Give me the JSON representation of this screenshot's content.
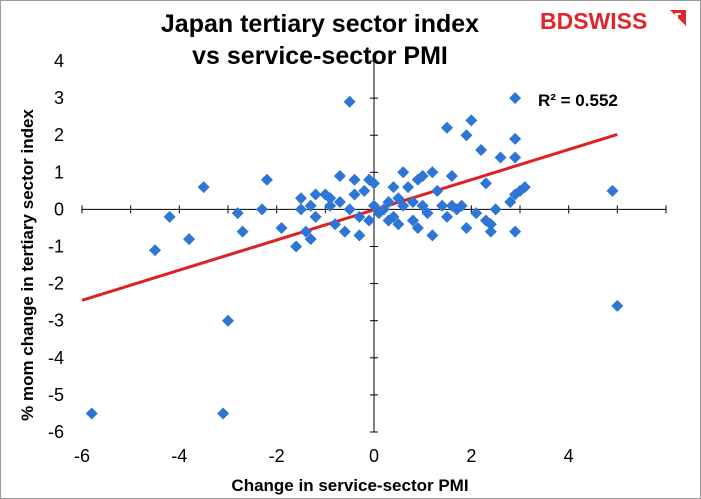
{
  "chart_data": {
    "type": "scatter",
    "title": "Japan tertiary sector index vs service-sector PMI",
    "title_lines": [
      "Japan tertiary sector index",
      "vs service-sector PMI"
    ],
    "xlabel": "Change in service-sector PMI",
    "ylabel": "% mom change in tertiary sector index",
    "xlim": [
      -6,
      6
    ],
    "ylim": [
      -6,
      4
    ],
    "x_ticks": [
      "-6",
      "-4",
      "-2",
      "0",
      "2",
      "4"
    ],
    "y_ticks": [
      "4",
      "3",
      "2",
      "1",
      "0",
      "-1",
      "-2",
      "-3",
      "-4",
      "-5",
      "-6"
    ],
    "x_tick_values": [
      -6,
      -4,
      -2,
      0,
      2,
      4
    ],
    "y_tick_values": [
      4,
      3,
      2,
      1,
      0,
      -1,
      -2,
      -3,
      -4,
      -5,
      -6
    ],
    "grid": false,
    "annotation": "R² = 0.552",
    "marker_color": "#2e75d6",
    "trend_color": "#e02020",
    "trendline": {
      "x0": -6,
      "y0": -2.45,
      "x1": 5,
      "y1": 2.02
    },
    "points": [
      [
        -5.8,
        -5.5
      ],
      [
        -3.1,
        -5.5
      ],
      [
        -3.0,
        -3.0
      ],
      [
        5.0,
        -2.6
      ],
      [
        4.9,
        0.5
      ],
      [
        -4.5,
        -1.1
      ],
      [
        -4.2,
        -0.2
      ],
      [
        -3.8,
        -0.8
      ],
      [
        -3.5,
        0.6
      ],
      [
        -2.8,
        -0.1
      ],
      [
        -2.7,
        -0.6
      ],
      [
        -2.3,
        0.0
      ],
      [
        -2.2,
        0.8
      ],
      [
        -1.9,
        -0.5
      ],
      [
        -1.6,
        -1.0
      ],
      [
        -1.5,
        0.3
      ],
      [
        -1.5,
        0.0
      ],
      [
        -1.4,
        -0.6
      ],
      [
        -1.3,
        -0.8
      ],
      [
        -1.3,
        0.1
      ],
      [
        -1.2,
        0.4
      ],
      [
        -1.2,
        -0.2
      ],
      [
        -1.0,
        0.4
      ],
      [
        -0.9,
        0.3
      ],
      [
        -0.9,
        0.1
      ],
      [
        -0.8,
        -0.4
      ],
      [
        -0.7,
        0.9
      ],
      [
        -0.7,
        0.2
      ],
      [
        -0.6,
        -0.6
      ],
      [
        -0.5,
        2.9
      ],
      [
        -0.5,
        0.0
      ],
      [
        -0.4,
        0.8
      ],
      [
        -0.4,
        0.4
      ],
      [
        -0.3,
        -0.7
      ],
      [
        -0.3,
        -0.2
      ],
      [
        -0.2,
        0.5
      ],
      [
        -0.1,
        0.8
      ],
      [
        -0.1,
        -0.3
      ],
      [
        0.0,
        0.7
      ],
      [
        0.0,
        0.1
      ],
      [
        0.1,
        -0.1
      ],
      [
        0.2,
        0.0
      ],
      [
        0.3,
        0.2
      ],
      [
        0.3,
        -0.3
      ],
      [
        0.4,
        0.6
      ],
      [
        0.4,
        -0.2
      ],
      [
        0.5,
        0.3
      ],
      [
        0.5,
        -0.4
      ],
      [
        0.6,
        0.1
      ],
      [
        0.6,
        1.0
      ],
      [
        0.7,
        0.6
      ],
      [
        0.8,
        -0.3
      ],
      [
        0.8,
        0.2
      ],
      [
        0.9,
        0.8
      ],
      [
        0.9,
        -0.5
      ],
      [
        1.0,
        0.9
      ],
      [
        1.0,
        0.1
      ],
      [
        1.1,
        -0.1
      ],
      [
        1.2,
        1.0
      ],
      [
        1.2,
        -0.7
      ],
      [
        1.3,
        0.5
      ],
      [
        1.4,
        0.1
      ],
      [
        1.5,
        2.2
      ],
      [
        1.5,
        -0.2
      ],
      [
        1.6,
        0.9
      ],
      [
        1.6,
        0.1
      ],
      [
        1.7,
        0.0
      ],
      [
        1.8,
        0.1
      ],
      [
        1.9,
        2.0
      ],
      [
        1.9,
        -0.5
      ],
      [
        2.0,
        2.4
      ],
      [
        2.1,
        -0.1
      ],
      [
        2.2,
        1.6
      ],
      [
        2.3,
        0.7
      ],
      [
        2.3,
        -0.3
      ],
      [
        2.4,
        -0.6
      ],
      [
        2.4,
        -0.4
      ],
      [
        2.5,
        0.0
      ],
      [
        2.6,
        1.4
      ],
      [
        2.8,
        0.2
      ],
      [
        2.9,
        1.4
      ],
      [
        2.9,
        3.0
      ],
      [
        2.9,
        1.9
      ],
      [
        2.9,
        -0.6
      ],
      [
        2.9,
        0.4
      ],
      [
        3.0,
        0.5
      ],
      [
        3.1,
        0.6
      ]
    ]
  },
  "logo": {
    "text": "BDSWISS",
    "color": "#e0262b"
  }
}
